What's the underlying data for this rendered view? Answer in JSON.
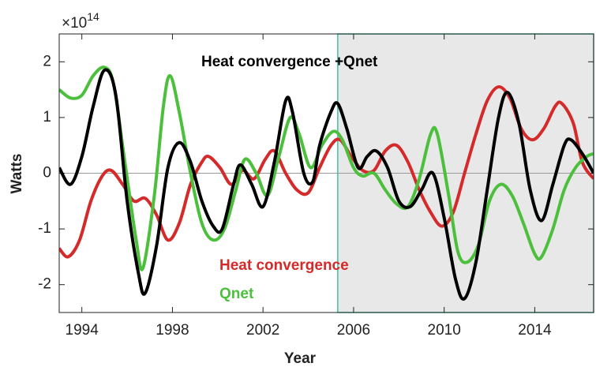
{
  "chart_data": {
    "type": "line",
    "x_label": "Year",
    "y_label": "Watts",
    "y_multiplier": {
      "base": "×10",
      "exponent": "14"
    },
    "xlim": [
      1993,
      2016.6
    ],
    "ylim": [
      -2.5,
      2.5
    ],
    "xticks": [
      1994,
      1998,
      2002,
      2006,
      2010,
      2014
    ],
    "yticks": [
      -2,
      -1,
      0,
      1,
      2
    ],
    "shaded_region": [
      2005.3,
      2016.6
    ],
    "series": [
      {
        "name": "Heat convergence +Qnet",
        "color": "#000000",
        "x": [
          1993.0,
          1993.5,
          1994.0,
          1994.5,
          1995.0,
          1995.5,
          1996.0,
          1996.5,
          1996.8,
          1997.3,
          1997.8,
          1998.3,
          1998.8,
          1999.3,
          1999.8,
          2000.2,
          2000.7,
          2001.0,
          2001.5,
          2002.0,
          2002.5,
          2003.0,
          2003.3,
          2003.8,
          2004.2,
          2004.5,
          2005.0,
          2005.3,
          2005.7,
          2006.2,
          2006.6,
          2007.0,
          2007.5,
          2008.0,
          2008.5,
          2009.0,
          2009.5,
          2010.0,
          2010.5,
          2010.9,
          2011.4,
          2011.9,
          2012.4,
          2012.8,
          2013.3,
          2013.8,
          2014.3,
          2014.8,
          2015.3,
          2015.6,
          2016.1,
          2016.6
        ],
        "values": [
          0.1,
          -0.2,
          0.3,
          1.2,
          1.85,
          1.4,
          -0.5,
          -1.8,
          -2.15,
          -1.3,
          0.1,
          0.55,
          0.2,
          -0.5,
          -0.95,
          -1.0,
          -0.2,
          0.15,
          -0.2,
          -0.6,
          0.2,
          1.3,
          1.1,
          0.0,
          -0.15,
          0.5,
          1.1,
          1.25,
          0.8,
          0.1,
          0.3,
          0.4,
          0.1,
          -0.5,
          -0.6,
          -0.3,
          0.0,
          -0.8,
          -1.9,
          -2.25,
          -1.6,
          -0.3,
          1.0,
          1.45,
          0.9,
          -0.3,
          -0.85,
          -0.2,
          0.5,
          0.6,
          0.35,
          0.0
        ]
      },
      {
        "name": "Heat convergence",
        "color": "#d42a2a",
        "x": [
          1993.0,
          1993.4,
          1993.9,
          1994.4,
          1994.9,
          1995.3,
          1995.8,
          1996.3,
          1996.8,
          1997.3,
          1997.8,
          1998.3,
          1998.8,
          1999.3,
          1999.6,
          2000.1,
          2000.6,
          2001.1,
          2001.6,
          2002.1,
          2002.5,
          2003.0,
          2003.5,
          2004.0,
          2004.5,
          2005.0,
          2005.4,
          2005.9,
          2006.4,
          2006.9,
          2007.4,
          2007.9,
          2008.4,
          2008.9,
          2009.4,
          2009.9,
          2010.4,
          2010.9,
          2011.4,
          2011.9,
          2012.4,
          2012.9,
          2013.4,
          2013.9,
          2014.4,
          2014.9,
          2015.2,
          2015.7,
          2016.1,
          2016.6
        ],
        "values": [
          -1.35,
          -1.5,
          -1.2,
          -0.5,
          -0.05,
          0.05,
          -0.2,
          -0.5,
          -0.45,
          -0.75,
          -1.2,
          -0.9,
          -0.2,
          0.2,
          0.3,
          0.1,
          -0.2,
          0.05,
          -0.1,
          0.25,
          0.4,
          0.0,
          -0.3,
          -0.35,
          0.1,
          0.5,
          0.6,
          0.3,
          0.05,
          0.05,
          0.4,
          0.5,
          0.2,
          -0.3,
          -0.7,
          -0.95,
          -0.7,
          0.0,
          0.7,
          1.3,
          1.55,
          1.35,
          0.8,
          0.6,
          0.8,
          1.2,
          1.25,
          0.9,
          0.2,
          -0.1
        ]
      },
      {
        "name": "Qnet",
        "color": "#4cbf3c",
        "x": [
          1993.0,
          1993.5,
          1994.0,
          1994.5,
          1995.0,
          1995.4,
          1995.9,
          1996.4,
          1996.7,
          1997.2,
          1997.6,
          1997.9,
          1998.3,
          1998.8,
          1999.3,
          1999.8,
          2000.3,
          2000.8,
          2001.2,
          2001.7,
          2002.2,
          2002.7,
          2003.2,
          2003.6,
          2004.1,
          2004.6,
          2005.1,
          2005.5,
          2006.0,
          2006.4,
          2006.9,
          2007.4,
          2007.9,
          2008.4,
          2008.9,
          2009.4,
          2009.7,
          2010.2,
          2010.6,
          2011.0,
          2011.5,
          2012.0,
          2012.5,
          2013.0,
          2013.5,
          2014.0,
          2014.3,
          2014.8,
          2015.3,
          2015.8,
          2016.3,
          2016.6
        ],
        "values": [
          1.5,
          1.35,
          1.4,
          1.75,
          1.9,
          1.6,
          0.2,
          -1.2,
          -1.7,
          -0.4,
          1.2,
          1.75,
          1.1,
          0.0,
          -0.9,
          -1.2,
          -1.0,
          -0.3,
          0.25,
          0.0,
          -0.4,
          0.3,
          1.0,
          0.7,
          0.1,
          0.5,
          0.75,
          0.6,
          0.1,
          -0.05,
          0.0,
          -0.3,
          -0.55,
          -0.6,
          -0.1,
          0.7,
          0.7,
          -0.4,
          -1.4,
          -1.6,
          -1.3,
          -0.5,
          -0.2,
          -0.4,
          -0.9,
          -1.45,
          -1.5,
          -1.0,
          -0.3,
          0.1,
          0.3,
          0.35
        ]
      }
    ]
  }
}
